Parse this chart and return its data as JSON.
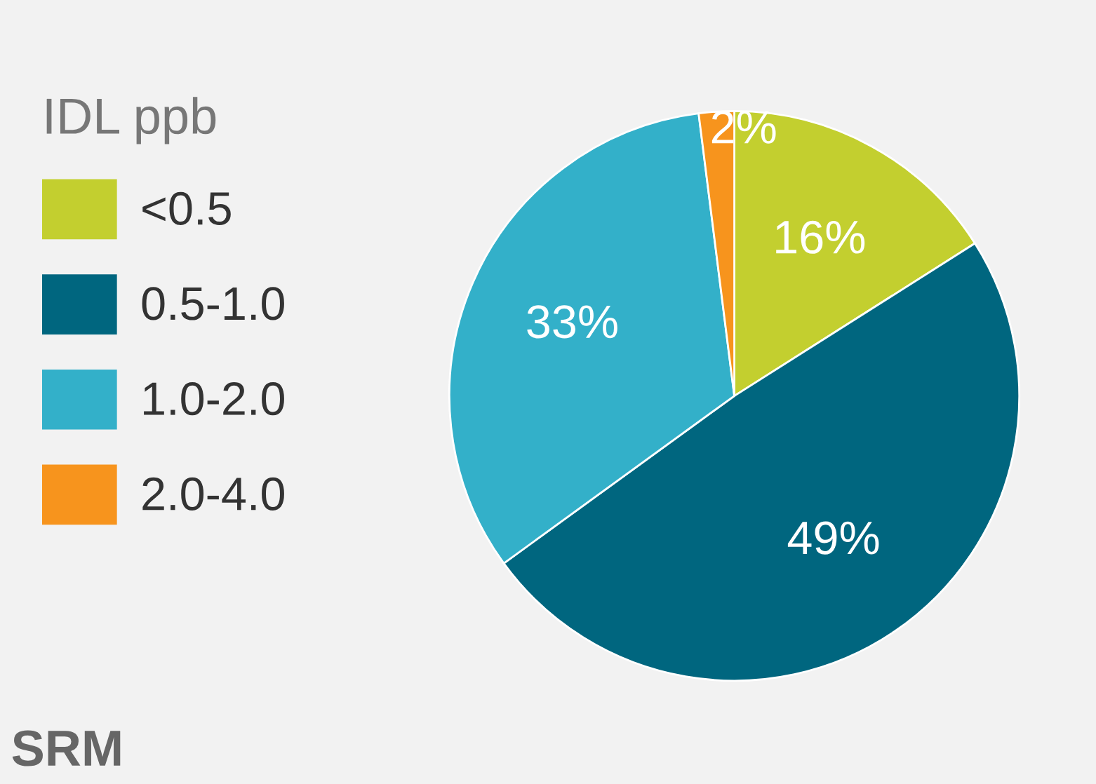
{
  "chart_data": {
    "type": "pie",
    "legend_title": "IDL ppb",
    "categories": [
      "<0.5",
      "0.5-1.0",
      "1.0-2.0",
      "2.0-4.0"
    ],
    "values": [
      16,
      49,
      33,
      2
    ],
    "colors": [
      "#c3cf2f",
      "#00667f",
      "#33b0c9",
      "#f7941d"
    ],
    "value_labels": [
      "16%",
      "49%",
      "33%",
      "2%"
    ],
    "legend": "left",
    "annotations": [
      "SRM"
    ]
  }
}
